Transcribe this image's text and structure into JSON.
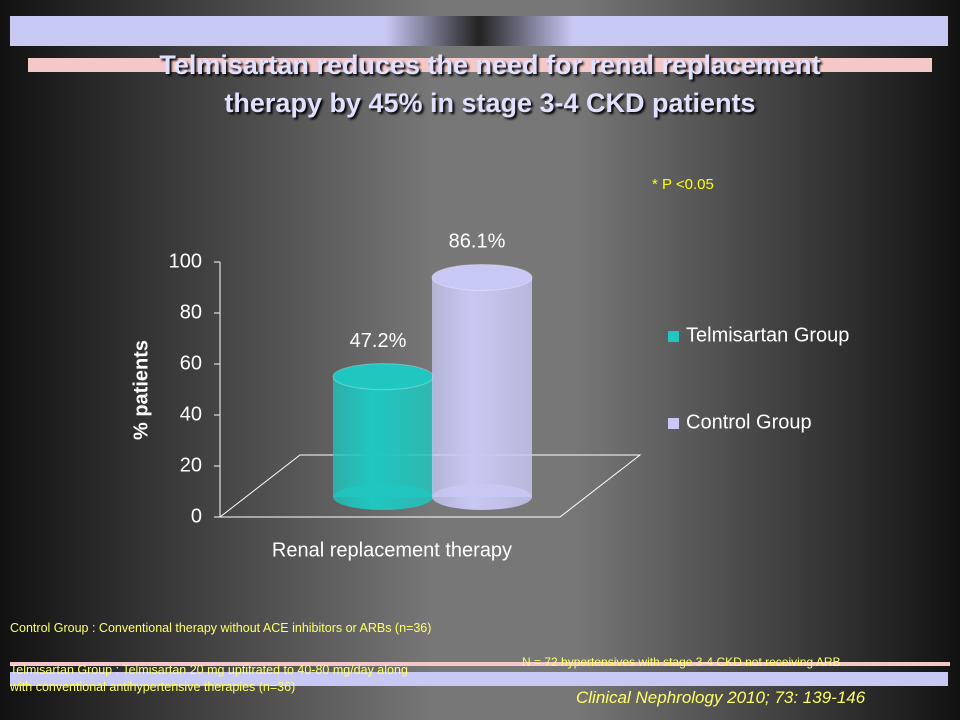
{
  "chart_data": {
    "type": "bar",
    "title": "Telmisartan reduces the  need for renal replacement therapy by 45%  in stage 3-4 CKD patients",
    "annotation": "* P <0.05",
    "ylabel": "% patients",
    "categories": [
      "Renal replacement therapy"
    ],
    "series": [
      {
        "name": "Telmisartan Group",
        "color": "#1fc7c0",
        "values": [
          47.2
        ],
        "value_labels": [
          "47.2%"
        ]
      },
      {
        "name": "Control Group",
        "color": "#c8c8f4",
        "values": [
          86.1
        ],
        "value_labels": [
          "86.1%"
        ]
      }
    ],
    "ylim": [
      0,
      100
    ],
    "yticks": [
      0,
      20,
      40,
      60,
      80,
      100
    ],
    "footnotes": [
      "Control Group : Conventional therapy without ACE inhibitors or ARBs (n=36)",
      "Telmisartan Group : Telmisartan 20 mg uptitrated  to  40-80 mg/day  along with conventional antihypertensive therapies (n=36)",
      "N = 72 hypertensives with stage 3-4  CKD not receiving ARB"
    ],
    "source": "Clinical Nephrology 2010; 73: 139-146"
  }
}
